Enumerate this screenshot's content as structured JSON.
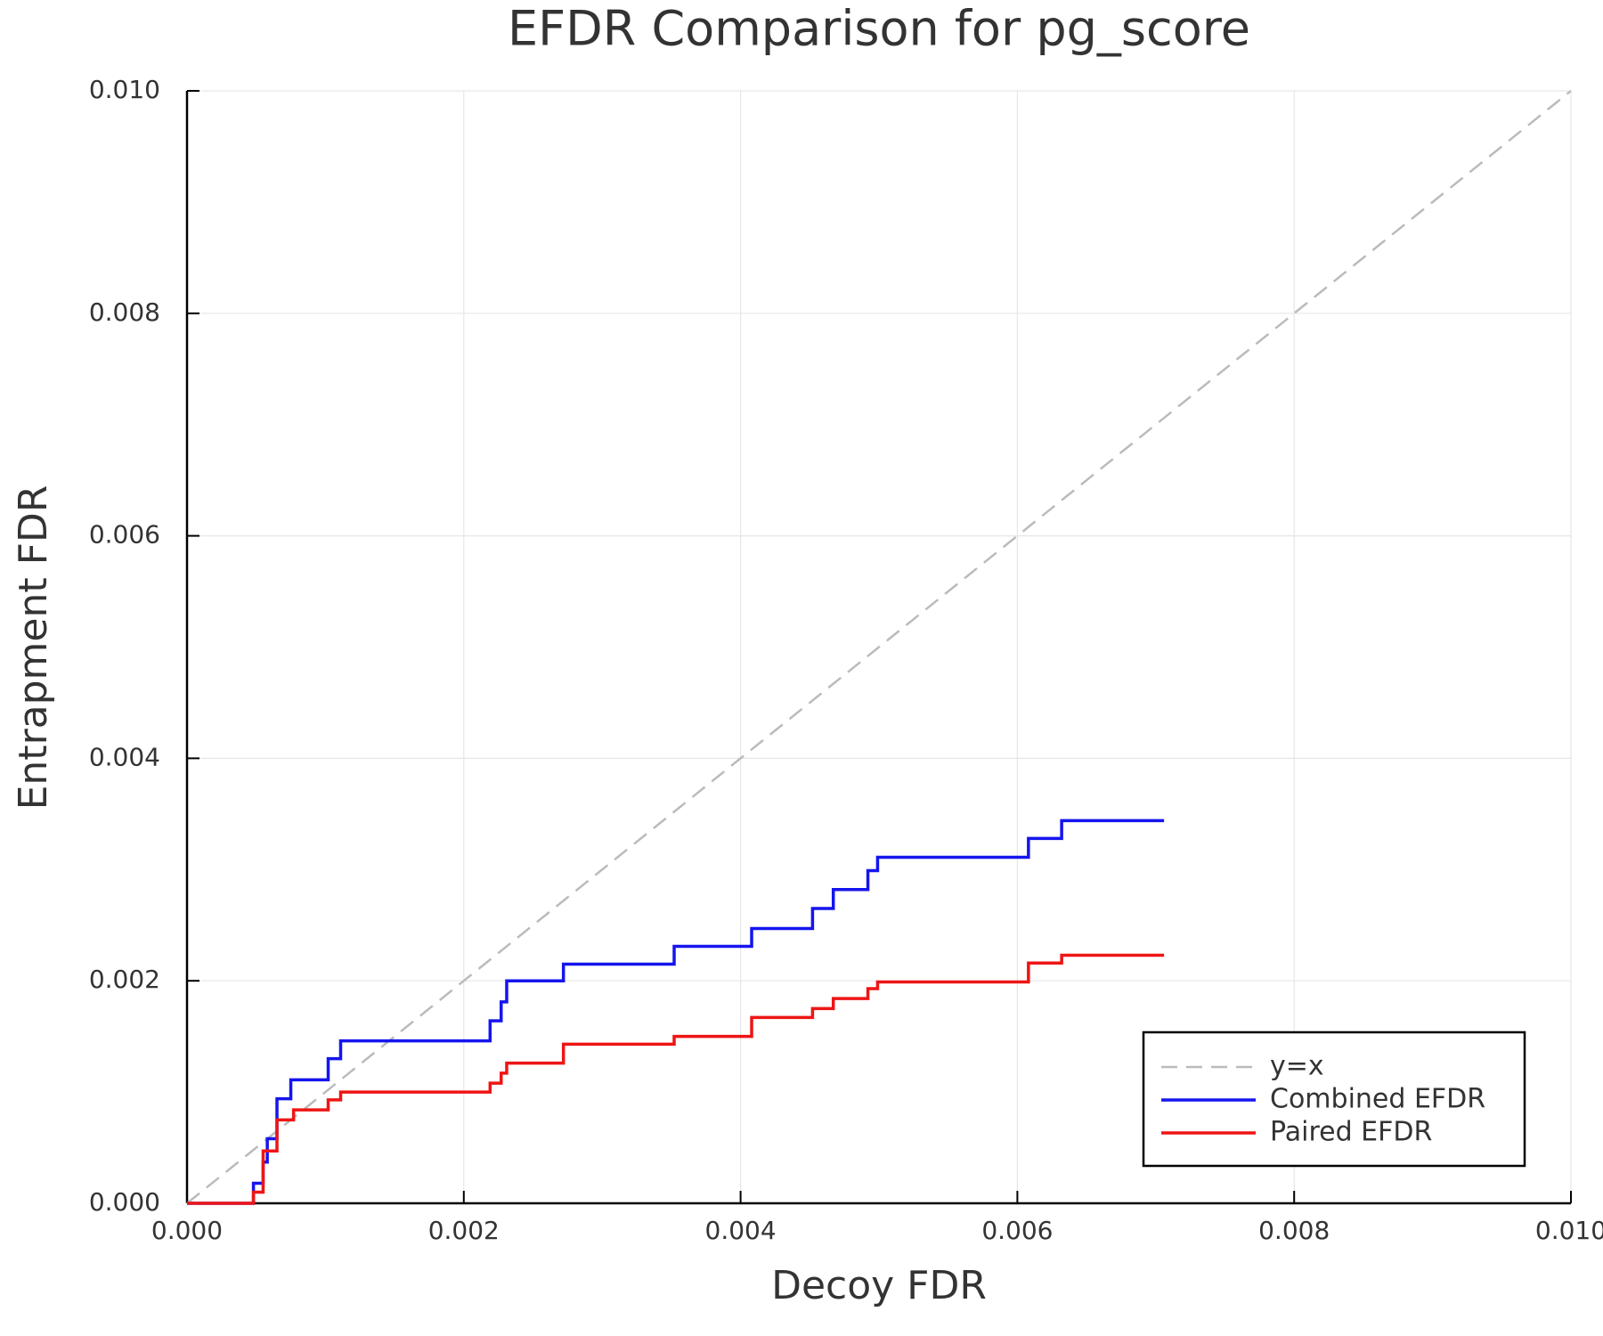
{
  "chart_data": {
    "type": "line",
    "title": "EFDR Comparison for pg_score",
    "x_label": "Decoy FDR",
    "y_label": "Entrapment FDR",
    "xlim": [
      0,
      0.01
    ],
    "ylim": [
      0,
      0.01
    ],
    "xticks": [
      {
        "value": 0,
        "label": "0.000"
      },
      0.002,
      0.004,
      0.006,
      0.008,
      {
        "value": 0.01,
        "label": "0.010"
      }
    ],
    "yticks": [
      {
        "value": 0,
        "label": "0.000"
      },
      0.002,
      0.004,
      0.006,
      0.008,
      {
        "value": 0.01,
        "label": "0.010"
      }
    ],
    "grid": true,
    "legend": "lower right",
    "series": [
      {
        "name": "y=x",
        "color": "#bbbbbb",
        "dashed": true,
        "step": "none",
        "x": [
          0,
          0.01
        ],
        "values": [
          0,
          0.01
        ]
      },
      {
        "name": "Combined EFDR",
        "color": "#1515ee",
        "dashed": false,
        "step": "post",
        "x": [
          0,
          0.00048,
          0.00055,
          0.00058,
          0.00065,
          0.00075,
          0.00102,
          0.00111,
          0.00219,
          0.00227,
          0.00231,
          0.00272,
          0.00352,
          0.00408,
          0.00452,
          0.00467,
          0.00492,
          0.00499,
          0.00608,
          0.00632,
          0.00706
        ],
        "values": [
          0,
          0.00018,
          0.00037,
          0.00058,
          0.00094,
          0.00111,
          0.0013,
          0.00146,
          0.00164,
          0.00181,
          0.002,
          0.00215,
          0.00231,
          0.00247,
          0.00265,
          0.00282,
          0.00299,
          0.00311,
          0.00328,
          0.00344,
          0.00344
        ]
      },
      {
        "name": "Paired EFDR",
        "color": "#ee1515",
        "dashed": false,
        "step": "post",
        "x": [
          0,
          0.00048,
          0.00055,
          0.00065,
          0.00077,
          0.00102,
          0.00111,
          0.00219,
          0.00227,
          0.00231,
          0.00272,
          0.00352,
          0.00408,
          0.00452,
          0.00467,
          0.00492,
          0.00499,
          0.00608,
          0.00632,
          0.00706
        ],
        "values": [
          0,
          0.0001,
          0.00047,
          0.00075,
          0.00084,
          0.00093,
          0.001,
          0.00108,
          0.00117,
          0.00126,
          0.00143,
          0.0015,
          0.00167,
          0.00175,
          0.00184,
          0.00193,
          0.00199,
          0.00216,
          0.00223,
          0.00223
        ]
      }
    ]
  }
}
